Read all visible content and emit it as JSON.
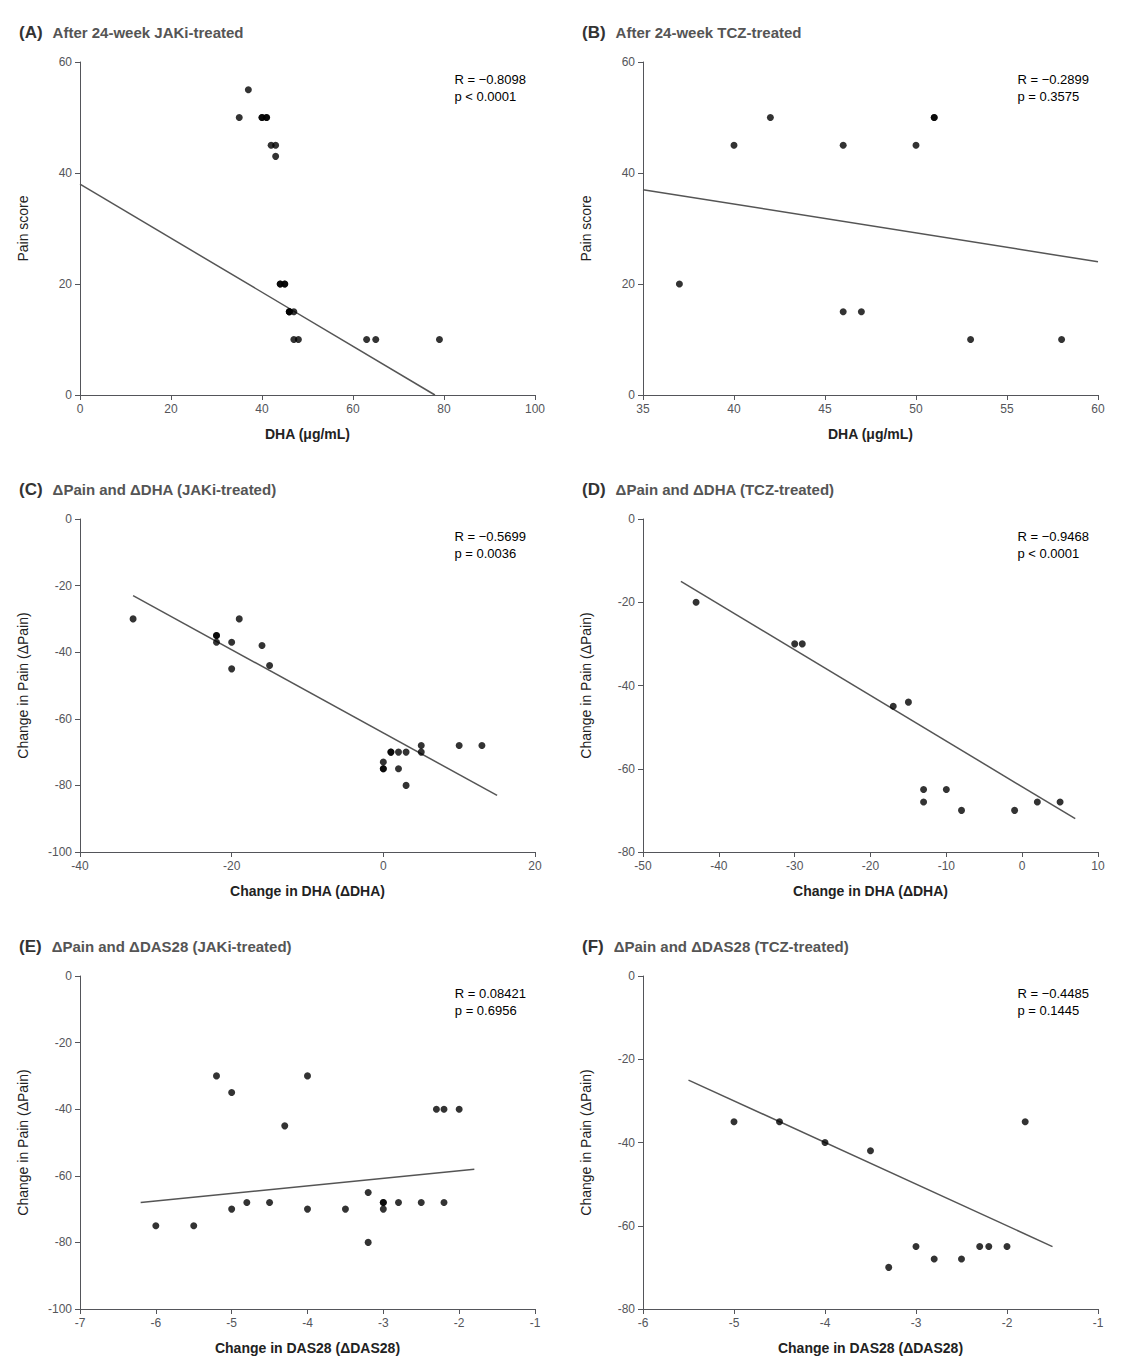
{
  "chart_data": [
    {
      "type": "scatter",
      "panel_label": "(A)",
      "title": "After 24-week JAKi-treated",
      "xlabel": "DHA (μg/mL)",
      "ylabel": "Pain score",
      "xlim": [
        0,
        100
      ],
      "ylim": [
        0,
        60
      ],
      "xticks": [
        0,
        20,
        40,
        60,
        80,
        100
      ],
      "yticks": [
        0,
        20,
        40,
        60
      ],
      "grid": false,
      "series": [
        {
          "type": "scatter",
          "color": "#000000",
          "x": [
            35,
            37,
            40,
            40,
            41,
            41,
            42,
            43,
            43,
            44,
            44,
            45,
            45,
            46,
            46,
            46,
            47,
            47,
            48,
            63,
            65,
            79
          ],
          "values": [
            50,
            55,
            50,
            50,
            50,
            50,
            45,
            45,
            43,
            20,
            20,
            20,
            20,
            15,
            15,
            15,
            15,
            10,
            10,
            10,
            10,
            10
          ]
        },
        {
          "type": "line",
          "color": "#555555",
          "x": [
            0,
            78
          ],
          "values": [
            38,
            0
          ]
        }
      ],
      "annotations": [
        "R = −0.8098",
        "p < 0.0001"
      ]
    },
    {
      "type": "scatter",
      "panel_label": "(B)",
      "title": "After 24-week TCZ-treated",
      "xlabel": "DHA (μg/mL)",
      "ylabel": "Pain score",
      "xlim": [
        35,
        60
      ],
      "ylim": [
        0,
        60
      ],
      "xticks": [
        35,
        40,
        45,
        50,
        55,
        60
      ],
      "yticks": [
        0,
        20,
        40,
        60
      ],
      "grid": false,
      "series": [
        {
          "type": "scatter",
          "color": "#000000",
          "x": [
            37,
            40,
            42,
            46,
            46,
            47,
            50,
            51,
            51,
            53,
            58
          ],
          "values": [
            20,
            45,
            50,
            45,
            15,
            15,
            45,
            50,
            50,
            10,
            10
          ]
        },
        {
          "type": "line",
          "color": "#555555",
          "x": [
            35,
            60
          ],
          "values": [
            37,
            24
          ]
        }
      ],
      "annotations": [
        "R = −0.2899",
        "p = 0.3575"
      ]
    },
    {
      "type": "scatter",
      "panel_label": "(C)",
      "title": "ΔPain and ΔDHA (JAKi-treated)",
      "xlabel": "Change in DHA (ΔDHA)",
      "ylabel": "Change in Pain (ΔPain)",
      "xlim": [
        -40,
        20
      ],
      "ylim": [
        -100,
        0
      ],
      "xticks": [
        -40,
        -20,
        0,
        20
      ],
      "yticks": [
        -100,
        -80,
        -60,
        -40,
        -20,
        0
      ],
      "grid": false,
      "series": [
        {
          "type": "scatter",
          "color": "#000000",
          "x": [
            -33,
            -22,
            -22,
            -22,
            -20,
            -20,
            -19,
            -16,
            -15,
            0,
            0,
            0,
            1,
            1,
            2,
            2,
            3,
            3,
            5,
            5,
            10,
            13
          ],
          "values": [
            -30,
            -35,
            -35,
            -37,
            -37,
            -45,
            -30,
            -38,
            -44,
            -73,
            -75,
            -75,
            -70,
            -70,
            -70,
            -75,
            -70,
            -80,
            -70,
            -68,
            -68,
            -68
          ]
        },
        {
          "type": "line",
          "color": "#555555",
          "x": [
            -33,
            15
          ],
          "values": [
            -23,
            -83
          ]
        }
      ],
      "annotations": [
        "R = −0.5699",
        "p = 0.0036"
      ]
    },
    {
      "type": "scatter",
      "panel_label": "(D)",
      "title": "ΔPain and ΔDHA (TCZ-treated)",
      "xlabel": "Change in DHA (ΔDHA)",
      "ylabel": "Change in Pain (ΔPain)",
      "xlim": [
        -50,
        10
      ],
      "ylim": [
        -80,
        0
      ],
      "xticks": [
        -50,
        -40,
        -30,
        -20,
        -10,
        0,
        10
      ],
      "yticks": [
        -80,
        -60,
        -40,
        -20,
        0
      ],
      "grid": false,
      "series": [
        {
          "type": "scatter",
          "color": "#000000",
          "x": [
            -43,
            -30,
            -29,
            -17,
            -15,
            -13,
            -13,
            -10,
            -8,
            -1,
            2,
            5
          ],
          "values": [
            -20,
            -30,
            -30,
            -45,
            -44,
            -65,
            -68,
            -65,
            -70,
            -70,
            -68,
            -68
          ]
        },
        {
          "type": "line",
          "color": "#555555",
          "x": [
            -45,
            7
          ],
          "values": [
            -15,
            -72
          ]
        }
      ],
      "annotations": [
        "R = −0.9468",
        "p < 0.0001"
      ]
    },
    {
      "type": "scatter",
      "panel_label": "(E)",
      "title": "ΔPain and ΔDAS28 (JAKi-treated)",
      "xlabel": "Change in DAS28 (ΔDAS28)",
      "ylabel": "Change in Pain (ΔPain)",
      "xlim": [
        -7,
        -1
      ],
      "ylim": [
        -100,
        0
      ],
      "xticks": [
        -7,
        -6,
        -5,
        -4,
        -3,
        -2,
        -1
      ],
      "yticks": [
        -100,
        -80,
        -60,
        -40,
        -20,
        0
      ],
      "grid": false,
      "series": [
        {
          "type": "scatter",
          "color": "#000000",
          "x": [
            -6,
            -5.5,
            -5.2,
            -5,
            -5,
            -4.8,
            -4.5,
            -4.3,
            -4,
            -4,
            -3.5,
            -3.2,
            -3.2,
            -3,
            -3,
            -3,
            -2.8,
            -2.5,
            -2.3,
            -2.2,
            -2.2,
            -2
          ],
          "values": [
            -75,
            -75,
            -30,
            -35,
            -70,
            -68,
            -68,
            -45,
            -30,
            -70,
            -70,
            -65,
            -80,
            -68,
            -68,
            -70,
            -68,
            -68,
            -40,
            -40,
            -68,
            -40
          ]
        },
        {
          "type": "line",
          "color": "#555555",
          "x": [
            -6.2,
            -1.8
          ],
          "values": [
            -68,
            -58
          ]
        }
      ],
      "annotations": [
        "R = 0.08421",
        "p = 0.6956"
      ]
    },
    {
      "type": "scatter",
      "panel_label": "(F)",
      "title": "ΔPain and ΔDAS28 (TCZ-treated)",
      "xlabel": "Change in DAS28 (ΔDAS28)",
      "ylabel": "Change in Pain (ΔPain)",
      "xlim": [
        -6,
        -1
      ],
      "ylim": [
        -80,
        0
      ],
      "xticks": [
        -6,
        -5,
        -4,
        -3,
        -2,
        -1
      ],
      "yticks": [
        -80,
        -60,
        -40,
        -20,
        0
      ],
      "grid": false,
      "series": [
        {
          "type": "scatter",
          "color": "#000000",
          "x": [
            -5,
            -4.5,
            -4,
            -3.5,
            -3.3,
            -3,
            -2.8,
            -2.5,
            -2.3,
            -2.2,
            -2,
            -1.8
          ],
          "values": [
            -35,
            -35,
            -40,
            -42,
            -70,
            -65,
            -68,
            -68,
            -65,
            -65,
            -65,
            -35
          ]
        },
        {
          "type": "line",
          "color": "#555555",
          "x": [
            -5.5,
            -1.5
          ],
          "values": [
            -25,
            -65
          ]
        }
      ],
      "annotations": [
        "R = −0.4485",
        "p = 0.1445"
      ]
    }
  ]
}
